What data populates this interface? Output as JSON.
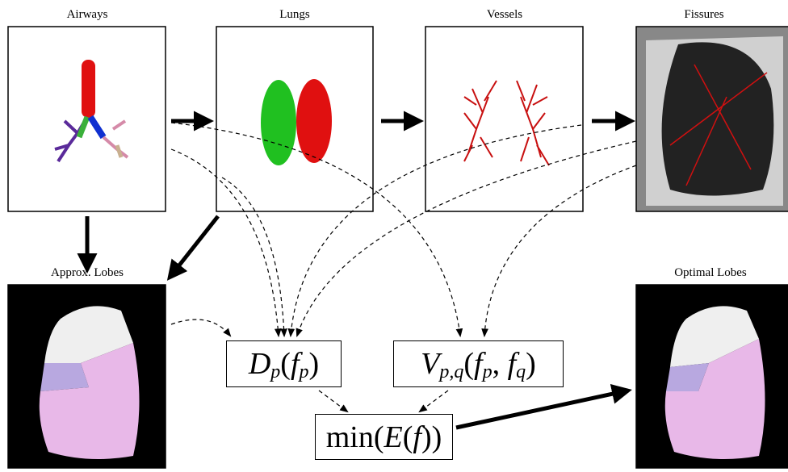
{
  "nodes": [
    {
      "label": "Airways"
    },
    {
      "label": "Lungs"
    },
    {
      "label": "Vessels"
    },
    {
      "label": "Fissures"
    },
    {
      "label": "Approx. Lobes"
    },
    {
      "label": "Optimal Lobes"
    }
  ],
  "formulas": [
    [
      {
        "text": "D",
        "style": "italic"
      },
      {
        "text": "p",
        "style": "sub"
      },
      {
        "text": "(",
        "style": "normal"
      },
      {
        "text": "f",
        "style": "italic"
      },
      {
        "text": "p",
        "style": "sub"
      },
      {
        "text": ")",
        "style": "normal"
      }
    ],
    [
      {
        "text": "V",
        "style": "italic"
      },
      {
        "text": "p,q",
        "style": "sub"
      },
      {
        "text": "(",
        "style": "normal"
      },
      {
        "text": "f",
        "style": "italic"
      },
      {
        "text": "p",
        "style": "sub"
      },
      {
        "text": ", ",
        "style": "normal"
      },
      {
        "text": "f",
        "style": "italic"
      },
      {
        "text": "q",
        "style": "sub"
      },
      {
        "text": ")",
        "style": "normal"
      }
    ],
    [
      {
        "text": "min",
        "style": "normal"
      },
      {
        "text": "(",
        "style": "normal"
      },
      {
        "text": "E",
        "style": "italic"
      },
      {
        "text": "(",
        "style": "normal"
      },
      {
        "text": "f",
        "style": "italic"
      },
      {
        "text": "))",
        "style": "normal"
      }
    ]
  ]
}
